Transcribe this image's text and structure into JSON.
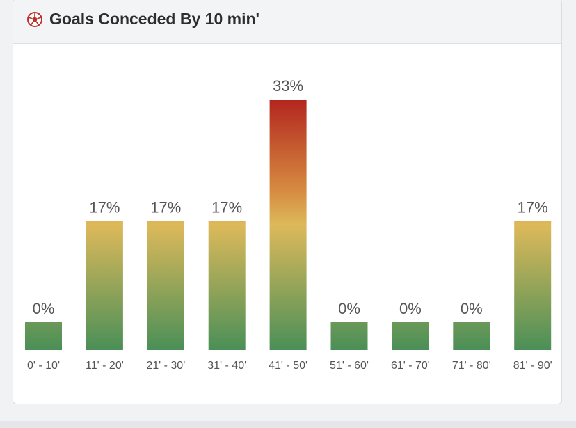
{
  "card": {
    "title": "Goals Conceded By 10 min'",
    "icon": "soccer-ball-icon"
  },
  "colors": {
    "bar_top_high": "#b3261e",
    "bar_orange": "#d68a40",
    "bar_yellow": "#ddb95a",
    "bar_green": "#4a8f57",
    "label_text": "#555555"
  },
  "chart_data": {
    "type": "bar",
    "title": "Goals Conceded By 10 min'",
    "categories": [
      "0' - 10'",
      "11' - 20'",
      "21' - 30'",
      "31' - 40'",
      "41' - 50'",
      "51' - 60'",
      "61' - 70'",
      "71' - 80'",
      "81' - 90'"
    ],
    "values": [
      0,
      17,
      17,
      17,
      33,
      0,
      0,
      0,
      17
    ],
    "value_labels": [
      "0%",
      "17%",
      "17%",
      "17%",
      "33%",
      "0%",
      "0%",
      "0%",
      "17%"
    ],
    "unit": "%",
    "ylim": [
      0,
      33
    ],
    "grid": false,
    "legend": "none"
  }
}
